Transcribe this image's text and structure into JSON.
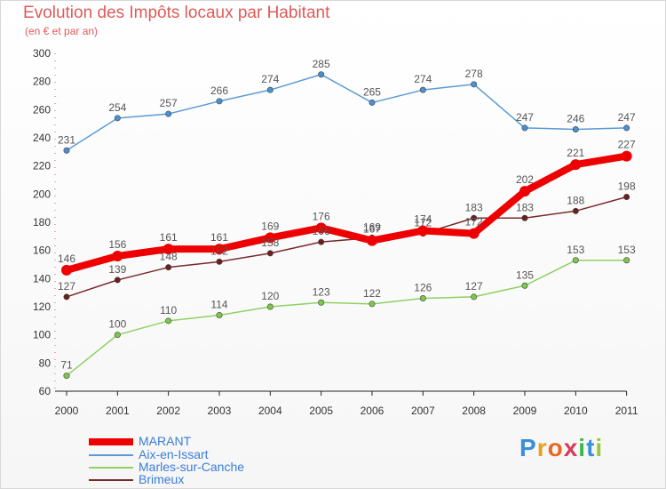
{
  "title": "Evolution des Impôts locaux par Habitant",
  "subtitle": "(en € et par an)",
  "logo": {
    "text": "Proxiti",
    "letters": [
      "P",
      "r",
      "o",
      "x",
      "i",
      "t",
      "i"
    ]
  },
  "chart_data": {
    "type": "line",
    "categories": [
      "2000",
      "2001",
      "2002",
      "2003",
      "2004",
      "2005",
      "2006",
      "2007",
      "2008",
      "2009",
      "2010",
      "2011"
    ],
    "ylim": [
      60,
      300
    ],
    "yticks": [
      60,
      80,
      100,
      120,
      140,
      160,
      180,
      200,
      220,
      240,
      260,
      280,
      300
    ],
    "grid": false,
    "legend_position": "bottom-left",
    "series": [
      {
        "name": "Aix-en-Issart",
        "color": "#5b9bd5",
        "point_color": "#4a90d0",
        "values": [
          231,
          254,
          257,
          266,
          274,
          285,
          265,
          274,
          278,
          247,
          246,
          247
        ]
      },
      {
        "name": "Marles-sur-Canche",
        "color": "#8fd163",
        "point_color": "#7cc84a",
        "values": [
          71,
          100,
          110,
          114,
          120,
          123,
          122,
          126,
          127,
          135,
          153,
          153
        ]
      },
      {
        "name": "Brimeux",
        "color": "#7a2a2a",
        "point_color": "#6b1f1f",
        "values": [
          127,
          139,
          148,
          152,
          158,
          166,
          169,
          172,
          183,
          183,
          188,
          198
        ]
      },
      {
        "name": "MARANT",
        "color": "#ee0000",
        "point_color": "#ee0000",
        "values": [
          146,
          156,
          161,
          161,
          169,
          176,
          167,
          174,
          172,
          202,
          221,
          227
        ]
      }
    ],
    "legend_order": [
      "MARANT",
      "Aix-en-Issart",
      "Marles-sur-Canche",
      "Brimeux"
    ]
  }
}
